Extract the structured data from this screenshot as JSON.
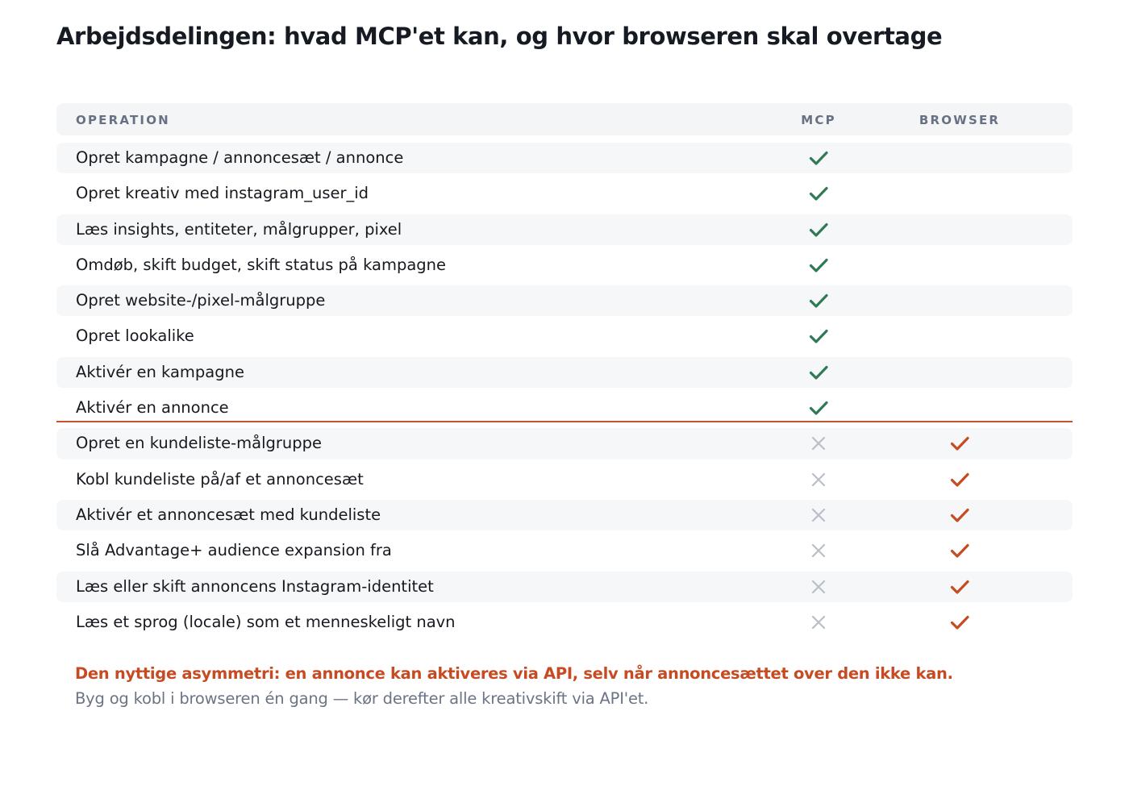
{
  "title": "Arbejdsdelingen: hvad MCP'et kan, og hvor browseren skal overtage",
  "colors": {
    "mcp_check": "#2f7a54",
    "browser_check": "#c64b22",
    "cross": "#b9bec7",
    "divider": "#c4532d"
  },
  "table": {
    "headers": {
      "operation": "OPERATION",
      "mcp": "MCP",
      "browser": "BROWSER"
    },
    "divider_after_row": 8,
    "rows": [
      {
        "label": "Opret kampagne / annoncesæt / annonce",
        "mcp": "check-icon",
        "browser": ""
      },
      {
        "label": "Opret kreativ med instagram_user_id",
        "mcp": "check-icon",
        "browser": ""
      },
      {
        "label": "Læs insights, entiteter, målgrupper, pixel",
        "mcp": "check-icon",
        "browser": ""
      },
      {
        "label": "Omdøb, skift budget, skift status på kampagne",
        "mcp": "check-icon",
        "browser": ""
      },
      {
        "label": "Opret website-/pixel-målgruppe",
        "mcp": "check-icon",
        "browser": ""
      },
      {
        "label": "Opret lookalike",
        "mcp": "check-icon",
        "browser": ""
      },
      {
        "label": "Aktivér en kampagne",
        "mcp": "check-icon",
        "browser": ""
      },
      {
        "label": "Aktivér en annonce",
        "mcp": "check-icon",
        "browser": ""
      },
      {
        "label": "Opret en kundeliste-målgruppe",
        "mcp": "cross-icon",
        "browser": "check-icon"
      },
      {
        "label": "Kobl kundeliste på/af et annoncesæt",
        "mcp": "cross-icon",
        "browser": "check-icon"
      },
      {
        "label": "Aktivér et annoncesæt med kundeliste",
        "mcp": "cross-icon",
        "browser": "check-icon"
      },
      {
        "label": "Slå Advantage+ audience expansion fra",
        "mcp": "cross-icon",
        "browser": "check-icon"
      },
      {
        "label": "Læs eller skift annoncens Instagram-identitet",
        "mcp": "cross-icon",
        "browser": "check-icon"
      },
      {
        "label": "Læs et sprog (locale) som et menneskeligt navn",
        "mcp": "cross-icon",
        "browser": "check-icon"
      }
    ]
  },
  "note": {
    "strong": "Den nyttige asymmetri: en annonce kan aktiveres via API, selv når annoncesættet over den ikke kan.",
    "sub": "Byg og kobl i browseren én gang — kør derefter alle kreativskift via API'et."
  }
}
